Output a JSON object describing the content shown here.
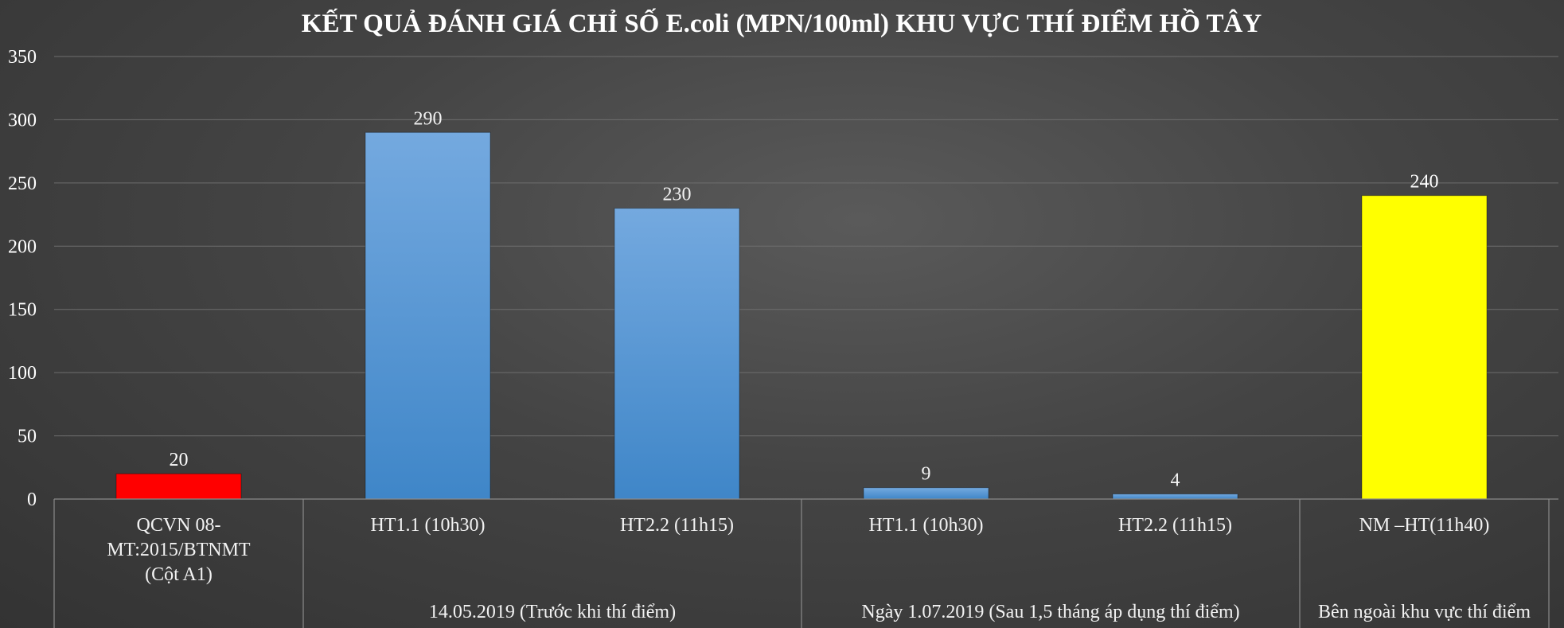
{
  "chart_data": {
    "type": "bar",
    "title": "KẾT QUẢ ĐÁNH GIÁ CHỈ SỐ E.coli (MPN/100ml)  KHU VỰC THÍ ĐIỂM HỒ TÂY",
    "xlabel": "",
    "ylabel": "",
    "ylim": [
      0,
      350
    ],
    "yticks": [
      0,
      50,
      100,
      150,
      200,
      250,
      300,
      350
    ],
    "grid": true,
    "legend": "none",
    "categories": [
      "QCVN 08-MT:2015/BTNMT (Cột A1)",
      "HT1.1 (10h30)",
      "HT2.2 (11h15)",
      "HT1.1 (10h30)",
      "HT2.2 (11h15)",
      "NM –HT(11h40)"
    ],
    "category_lines": [
      [
        "QCVN 08-",
        "MT:2015/BTNMT",
        "(Cột A1)"
      ],
      [
        "HT1.1 (10h30)"
      ],
      [
        "HT2.2 (11h15)"
      ],
      [
        "HT1.1 (10h30)"
      ],
      [
        "HT2.2 (11h15)"
      ],
      [
        "NM –HT(11h40)"
      ]
    ],
    "values": [
      20,
      290,
      230,
      9,
      4,
      240
    ],
    "data_labels": [
      "20",
      "290",
      "230",
      "9",
      "4",
      "240"
    ],
    "bar_colors": [
      "#ff0000",
      "#5b9bd5",
      "#5b9bd5",
      "#5b9bd5",
      "#5b9bd5",
      "#ffff00"
    ],
    "groups": [
      {
        "label": "",
        "start": 0,
        "end": 0
      },
      {
        "label": "14.05.2019 (Trước khi thí điểm)",
        "start": 1,
        "end": 2
      },
      {
        "label": "Ngày 1.07.2019 (Sau 1,5 tháng áp dụng thí điểm)",
        "start": 3,
        "end": 4
      },
      {
        "label": "Bên ngoài khu vực thí điểm",
        "start": 5,
        "end": 5
      }
    ]
  }
}
